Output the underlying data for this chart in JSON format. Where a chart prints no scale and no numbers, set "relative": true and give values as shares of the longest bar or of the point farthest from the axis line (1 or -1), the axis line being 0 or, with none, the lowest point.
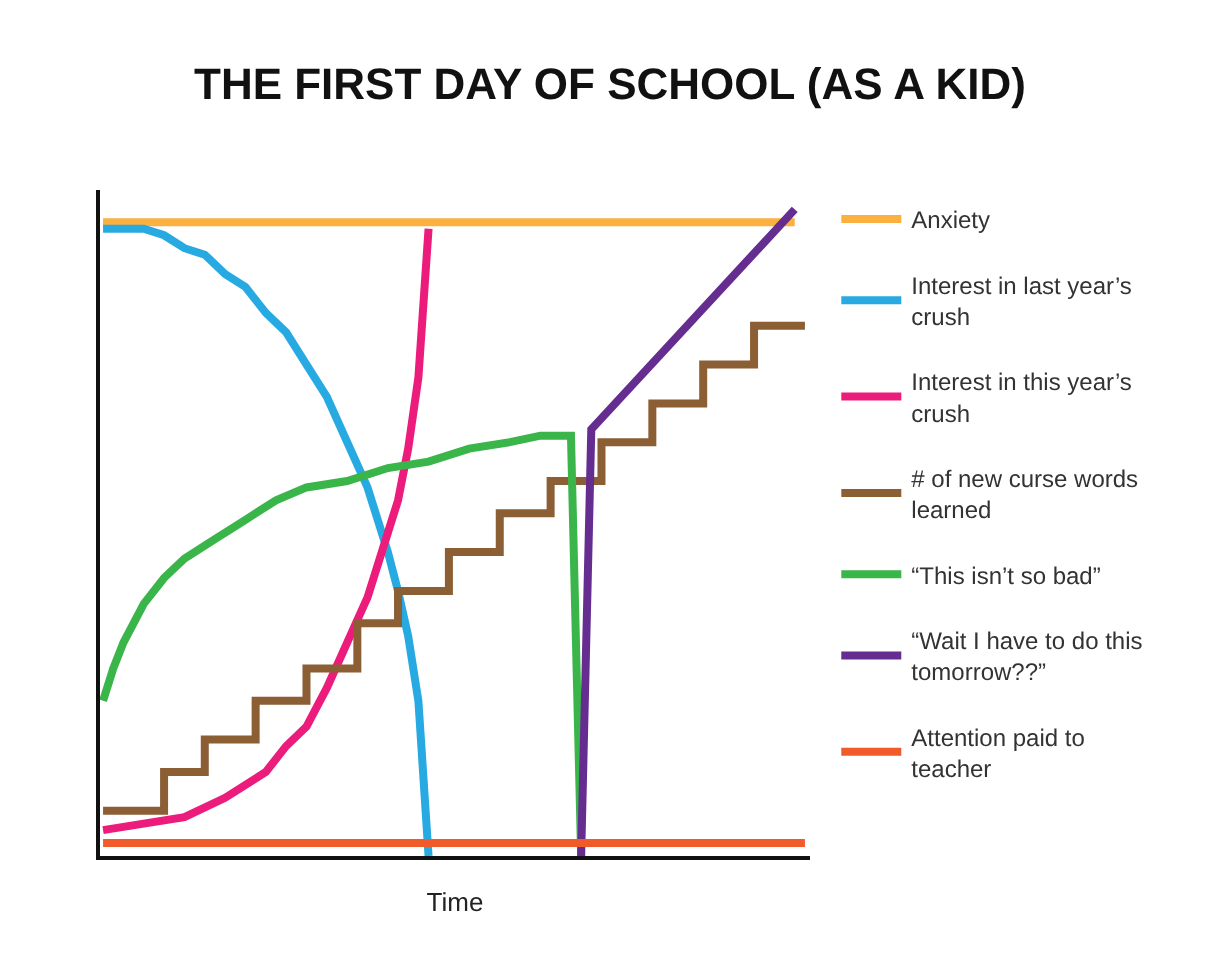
{
  "chart_data": {
    "type": "line",
    "title": "THE FIRST DAY OF SCHOOL (AS A KID)",
    "xlabel": "Time",
    "relative": true,
    "legend": "right",
    "categories": [
      null,
      null,
      null,
      null,
      null,
      null,
      null,
      null,
      null,
      null,
      null,
      null,
      null,
      null,
      null,
      null,
      null,
      null,
      null,
      null,
      null,
      null,
      null,
      null,
      null,
      null,
      null,
      null,
      null,
      null,
      null,
      null,
      null,
      null,
      null,
      null,
      null,
      null,
      null,
      null,
      null,
      null,
      null,
      null,
      null,
      null,
      null,
      null,
      null,
      null,
      null,
      null,
      null,
      null,
      null,
      null,
      null,
      null,
      null,
      null,
      null,
      null,
      null,
      null,
      null,
      null,
      null,
      null,
      null,
      null
    ],
    "series": [
      {
        "name": "Anxiety",
        "color": "#fbb040",
        "values": [
          0.98,
          null,
          null,
          null,
          null,
          null,
          null,
          null,
          null,
          null,
          null,
          null,
          null,
          null,
          null,
          null,
          null,
          null,
          null,
          null,
          null,
          null,
          null,
          null,
          null,
          null,
          null,
          null,
          null,
          null,
          null,
          null,
          null,
          null,
          null,
          null,
          null,
          null,
          null,
          null,
          null,
          null,
          null,
          null,
          null,
          null,
          null,
          null,
          null,
          null,
          null,
          null,
          null,
          null,
          null,
          null,
          null,
          null,
          null,
          null,
          null,
          null,
          null,
          null,
          null,
          null,
          null,
          null,
          0.98,
          null
        ]
      },
      {
        "name": "Interest in last year’s crush",
        "color": "#27aae1",
        "values": [
          0.97,
          null,
          0.97,
          null,
          0.97,
          null,
          0.96,
          null,
          0.94,
          null,
          0.93,
          null,
          0.9,
          null,
          0.88,
          null,
          0.84,
          null,
          0.81,
          null,
          0.76,
          null,
          0.71,
          null,
          0.64,
          null,
          0.57,
          null,
          0.47,
          0.41,
          0.34,
          0.24,
          0,
          null,
          null,
          null,
          null,
          null,
          null,
          null,
          null,
          null,
          null,
          null,
          null,
          null,
          null,
          null,
          null,
          null,
          null,
          null,
          null,
          null,
          null,
          null,
          null,
          null,
          null,
          null,
          null,
          null,
          null,
          null,
          null,
          null,
          null,
          null,
          null,
          null
        ]
      },
      {
        "name": "Interest in this year’s crush",
        "color": "#ec1c7c",
        "values": [
          0.04,
          null,
          null,
          null,
          0.05,
          null,
          null,
          null,
          0.06,
          null,
          null,
          null,
          0.09,
          null,
          null,
          null,
          0.13,
          null,
          0.17,
          null,
          0.2,
          null,
          0.26,
          null,
          0.33,
          null,
          0.4,
          null,
          0.5,
          0.55,
          0.63,
          0.74,
          0.97,
          null,
          null,
          null,
          null,
          null,
          null,
          null,
          null,
          null,
          null,
          null,
          null,
          null,
          null,
          null,
          null,
          null,
          null,
          null,
          null,
          null,
          null,
          null,
          null,
          null,
          null,
          null,
          null,
          null,
          null,
          null,
          null,
          null,
          null,
          null,
          null,
          null
        ]
      },
      {
        "name": "# of new curse words learned",
        "type": "step",
        "color": "#8b5e34",
        "values": [
          0.07,
          null,
          null,
          null,
          null,
          null,
          0.13,
          null,
          null,
          null,
          0.18,
          null,
          null,
          null,
          null,
          0.24,
          null,
          null,
          null,
          null,
          0.29,
          null,
          null,
          null,
          null,
          0.36,
          null,
          null,
          null,
          0.41,
          null,
          null,
          null,
          null,
          0.47,
          null,
          null,
          null,
          null,
          0.53,
          null,
          null,
          null,
          null,
          0.58,
          null,
          null,
          null,
          null,
          0.64,
          null,
          null,
          null,
          null,
          0.7,
          null,
          null,
          null,
          null,
          0.76,
          null,
          null,
          null,
          null,
          0.82,
          null,
          null,
          null,
          null,
          0.82
        ]
      },
      {
        "name": "“This isn’t so bad”",
        "color": "#39b54a",
        "values": [
          0.24,
          0.29,
          0.33,
          null,
          0.39,
          null,
          0.43,
          null,
          0.46,
          null,
          null,
          0.49,
          null,
          null,
          0.52,
          null,
          null,
          0.55,
          null,
          null,
          0.57,
          null,
          null,
          null,
          0.58,
          null,
          null,
          null,
          0.6,
          null,
          null,
          null,
          0.61,
          null,
          null,
          null,
          0.63,
          null,
          null,
          null,
          0.64,
          null,
          null,
          0.65,
          null,
          null,
          0.65,
          0,
          null,
          null,
          null,
          null,
          null,
          null,
          null,
          null,
          null,
          null,
          null,
          null,
          null,
          null,
          null,
          null,
          null,
          null,
          null,
          null,
          null,
          null
        ]
      },
      {
        "name": "“Wait I have to do this tomorrow??”",
        "color": "#662d91",
        "values": [
          null,
          null,
          null,
          null,
          null,
          null,
          null,
          null,
          null,
          null,
          null,
          null,
          null,
          null,
          null,
          null,
          null,
          null,
          null,
          null,
          null,
          null,
          null,
          null,
          null,
          null,
          null,
          null,
          null,
          null,
          null,
          null,
          null,
          null,
          null,
          null,
          null,
          null,
          null,
          null,
          null,
          null,
          null,
          null,
          null,
          null,
          null,
          0,
          0.66,
          null,
          null,
          null,
          null,
          null,
          null,
          null,
          null,
          null,
          null,
          null,
          null,
          null,
          null,
          null,
          null,
          null,
          null,
          null,
          1,
          null
        ]
      },
      {
        "name": "Attention paid to teacher",
        "color": "#f15a29",
        "values": [
          0.02,
          null,
          null,
          null,
          null,
          null,
          null,
          null,
          null,
          null,
          null,
          null,
          null,
          null,
          null,
          null,
          null,
          null,
          null,
          null,
          null,
          null,
          null,
          null,
          null,
          null,
          null,
          null,
          null,
          null,
          null,
          null,
          null,
          null,
          null,
          null,
          null,
          null,
          null,
          null,
          null,
          null,
          null,
          null,
          null,
          null,
          null,
          null,
          null,
          null,
          null,
          null,
          null,
          null,
          null,
          null,
          null,
          null,
          null,
          null,
          null,
          null,
          null,
          null,
          null,
          null,
          null,
          null,
          null,
          0.02
        ]
      }
    ]
  }
}
